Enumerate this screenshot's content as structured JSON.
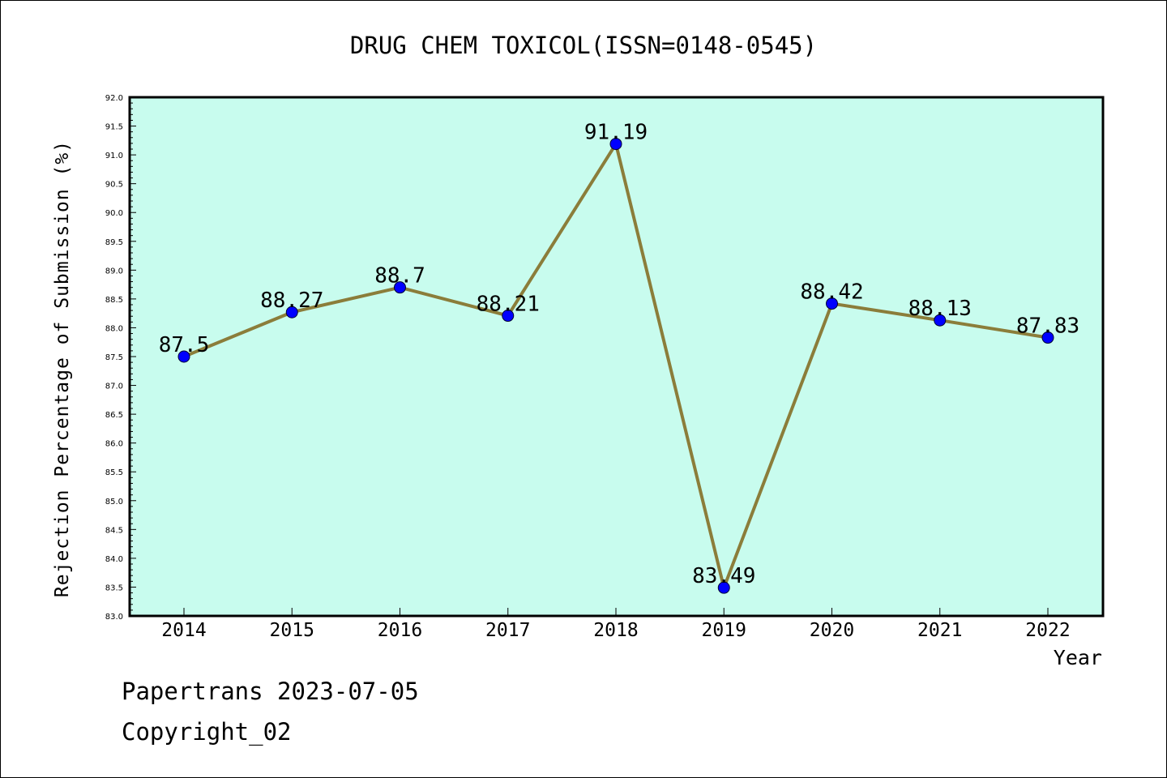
{
  "chart_data": {
    "type": "line",
    "title": "DRUG CHEM TOXICOL(ISSN=0148-0545)",
    "xlabel": "Year",
    "ylabel": "Rejection Percentage of Submission (%)",
    "categories": [
      "2014",
      "2015",
      "2016",
      "2017",
      "2018",
      "2019",
      "2020",
      "2021",
      "2022"
    ],
    "values": [
      87.5,
      88.27,
      88.7,
      88.21,
      91.19,
      83.49,
      88.42,
      88.13,
      87.83
    ],
    "data_labels": [
      "87.5",
      "88.27",
      "88.7",
      "88.21",
      "91.19",
      "83.49",
      "88.42",
      "88.13",
      "87.83"
    ],
    "ylim": [
      83.0,
      92.0
    ],
    "yticks": [
      "83.0",
      "83.5",
      "84.0",
      "84.5",
      "85.0",
      "85.5",
      "86.0",
      "86.5",
      "87.0",
      "87.5",
      "88.0",
      "88.5",
      "89.0",
      "89.5",
      "90.0",
      "90.5",
      "91.0",
      "91.5",
      "92.0"
    ],
    "grid": false,
    "colors": {
      "plot_background": "#c8fcee",
      "line": "#8b7d3a",
      "marker": "#0000ff"
    }
  },
  "footer": {
    "source": "Papertrans 2023-07-05",
    "copyright": "Copyright_02"
  }
}
